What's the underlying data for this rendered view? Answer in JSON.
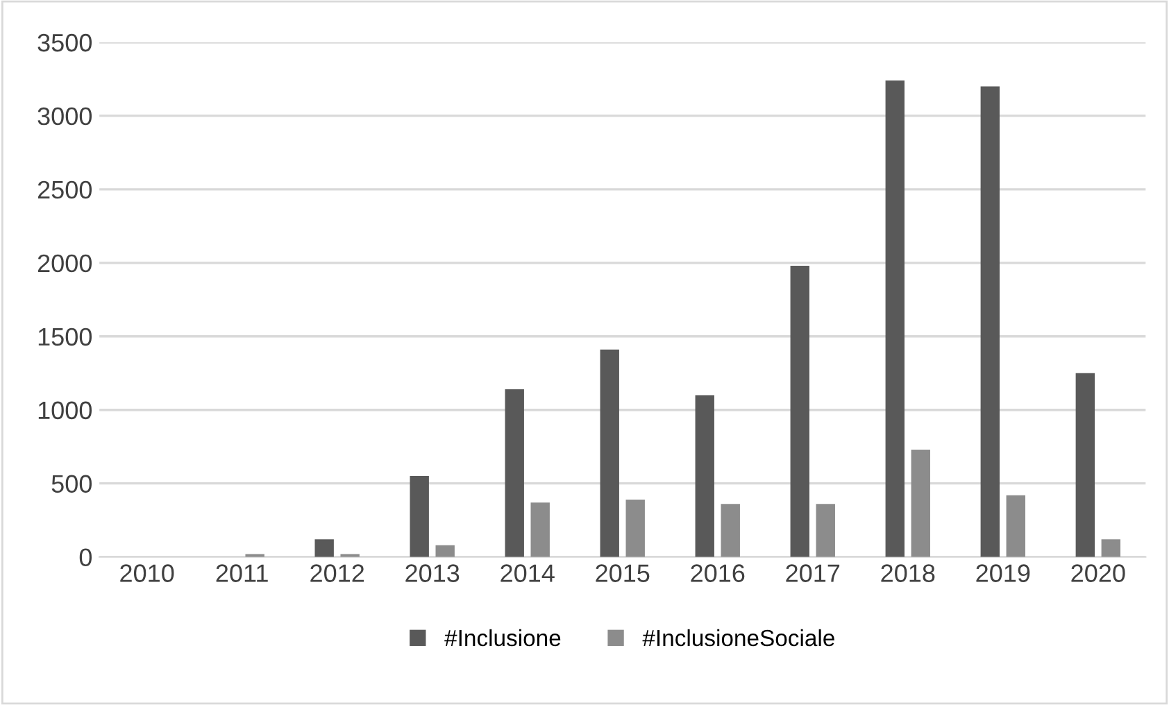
{
  "chart_data": {
    "type": "bar",
    "categories": [
      "2010",
      "2011",
      "2012",
      "2013",
      "2014",
      "2015",
      "2016",
      "2017",
      "2018",
      "2019",
      "2020"
    ],
    "series": [
      {
        "name": "#Inclusione",
        "color": "#595959",
        "values": [
          0,
          0,
          120,
          550,
          1140,
          1410,
          1100,
          1980,
          3240,
          3200,
          1250
        ]
      },
      {
        "name": "#InclusioneSociale",
        "color": "#8c8c8c",
        "values": [
          0,
          20,
          20,
          80,
          370,
          390,
          360,
          360,
          730,
          420,
          120
        ]
      }
    ],
    "ylim": [
      0,
      3500
    ],
    "yticks": [
      0,
      500,
      1000,
      1500,
      2000,
      2500,
      3000,
      3500
    ],
    "grid": "y",
    "legend": "bottom"
  }
}
